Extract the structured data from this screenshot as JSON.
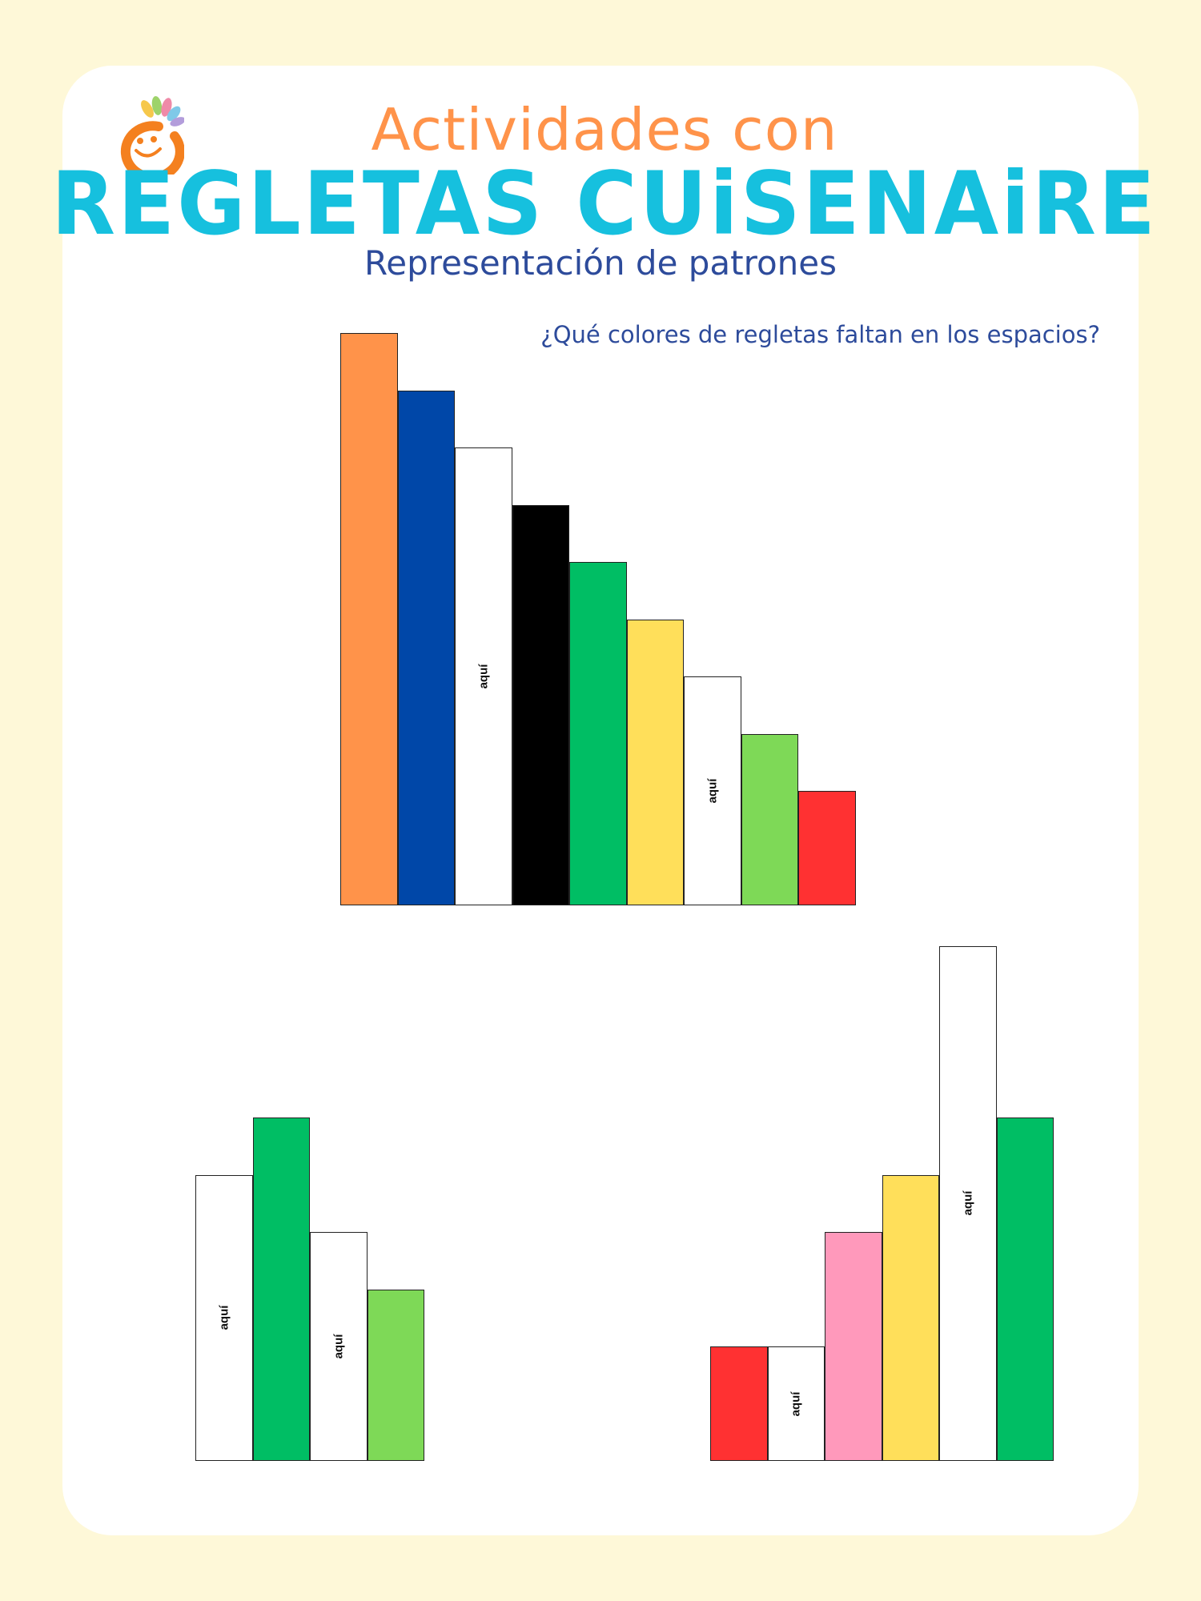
{
  "colors": {
    "background": "#fef8d8",
    "card": "#ffffff",
    "title_orange": "#ff934a",
    "title_cyan": "#16c0de",
    "title_navy": "#2d4b9b",
    "logo_orange": "#f4801f"
  },
  "logo": {
    "icon": "smiling-face-icon"
  },
  "header": {
    "line1": "Actividades con",
    "line2": "REGLETAS CUiSENAiRE",
    "line3": "Representación de patrones"
  },
  "question": "¿Qué colores de regletas faltan en los espacios?",
  "blank_label": "aquí",
  "patterns": [
    {
      "name": "staircase",
      "rods": [
        {
          "value": 10,
          "color": "#ff934a"
        },
        {
          "value": 9,
          "color": "#0047a8"
        },
        {
          "value": 8,
          "color": "#ffffff",
          "blank": true
        },
        {
          "value": 7,
          "color": "#000000"
        },
        {
          "value": 6,
          "color": "#00be64"
        },
        {
          "value": 5,
          "color": "#ffdf5a"
        },
        {
          "value": 4,
          "color": "#ffffff",
          "blank": true
        },
        {
          "value": 3,
          "color": "#7ed957"
        },
        {
          "value": 2,
          "color": "#ff3132"
        }
      ]
    },
    {
      "name": "left-pattern",
      "rods": [
        {
          "value": 5,
          "color": "#ffffff",
          "blank": true
        },
        {
          "value": 6,
          "color": "#00be64"
        },
        {
          "value": 4,
          "color": "#ffffff",
          "blank": true
        },
        {
          "value": 3,
          "color": "#7ed957"
        }
      ]
    },
    {
      "name": "right-pattern",
      "rods": [
        {
          "value": 2,
          "color": "#ff3132"
        },
        {
          "value": 2,
          "color": "#ffffff",
          "blank": true
        },
        {
          "value": 4,
          "color": "#ff99bb"
        },
        {
          "value": 5,
          "color": "#ffdf5a"
        },
        {
          "value": 9,
          "color": "#ffffff",
          "blank": true
        },
        {
          "value": 6,
          "color": "#00be64"
        }
      ]
    }
  ]
}
